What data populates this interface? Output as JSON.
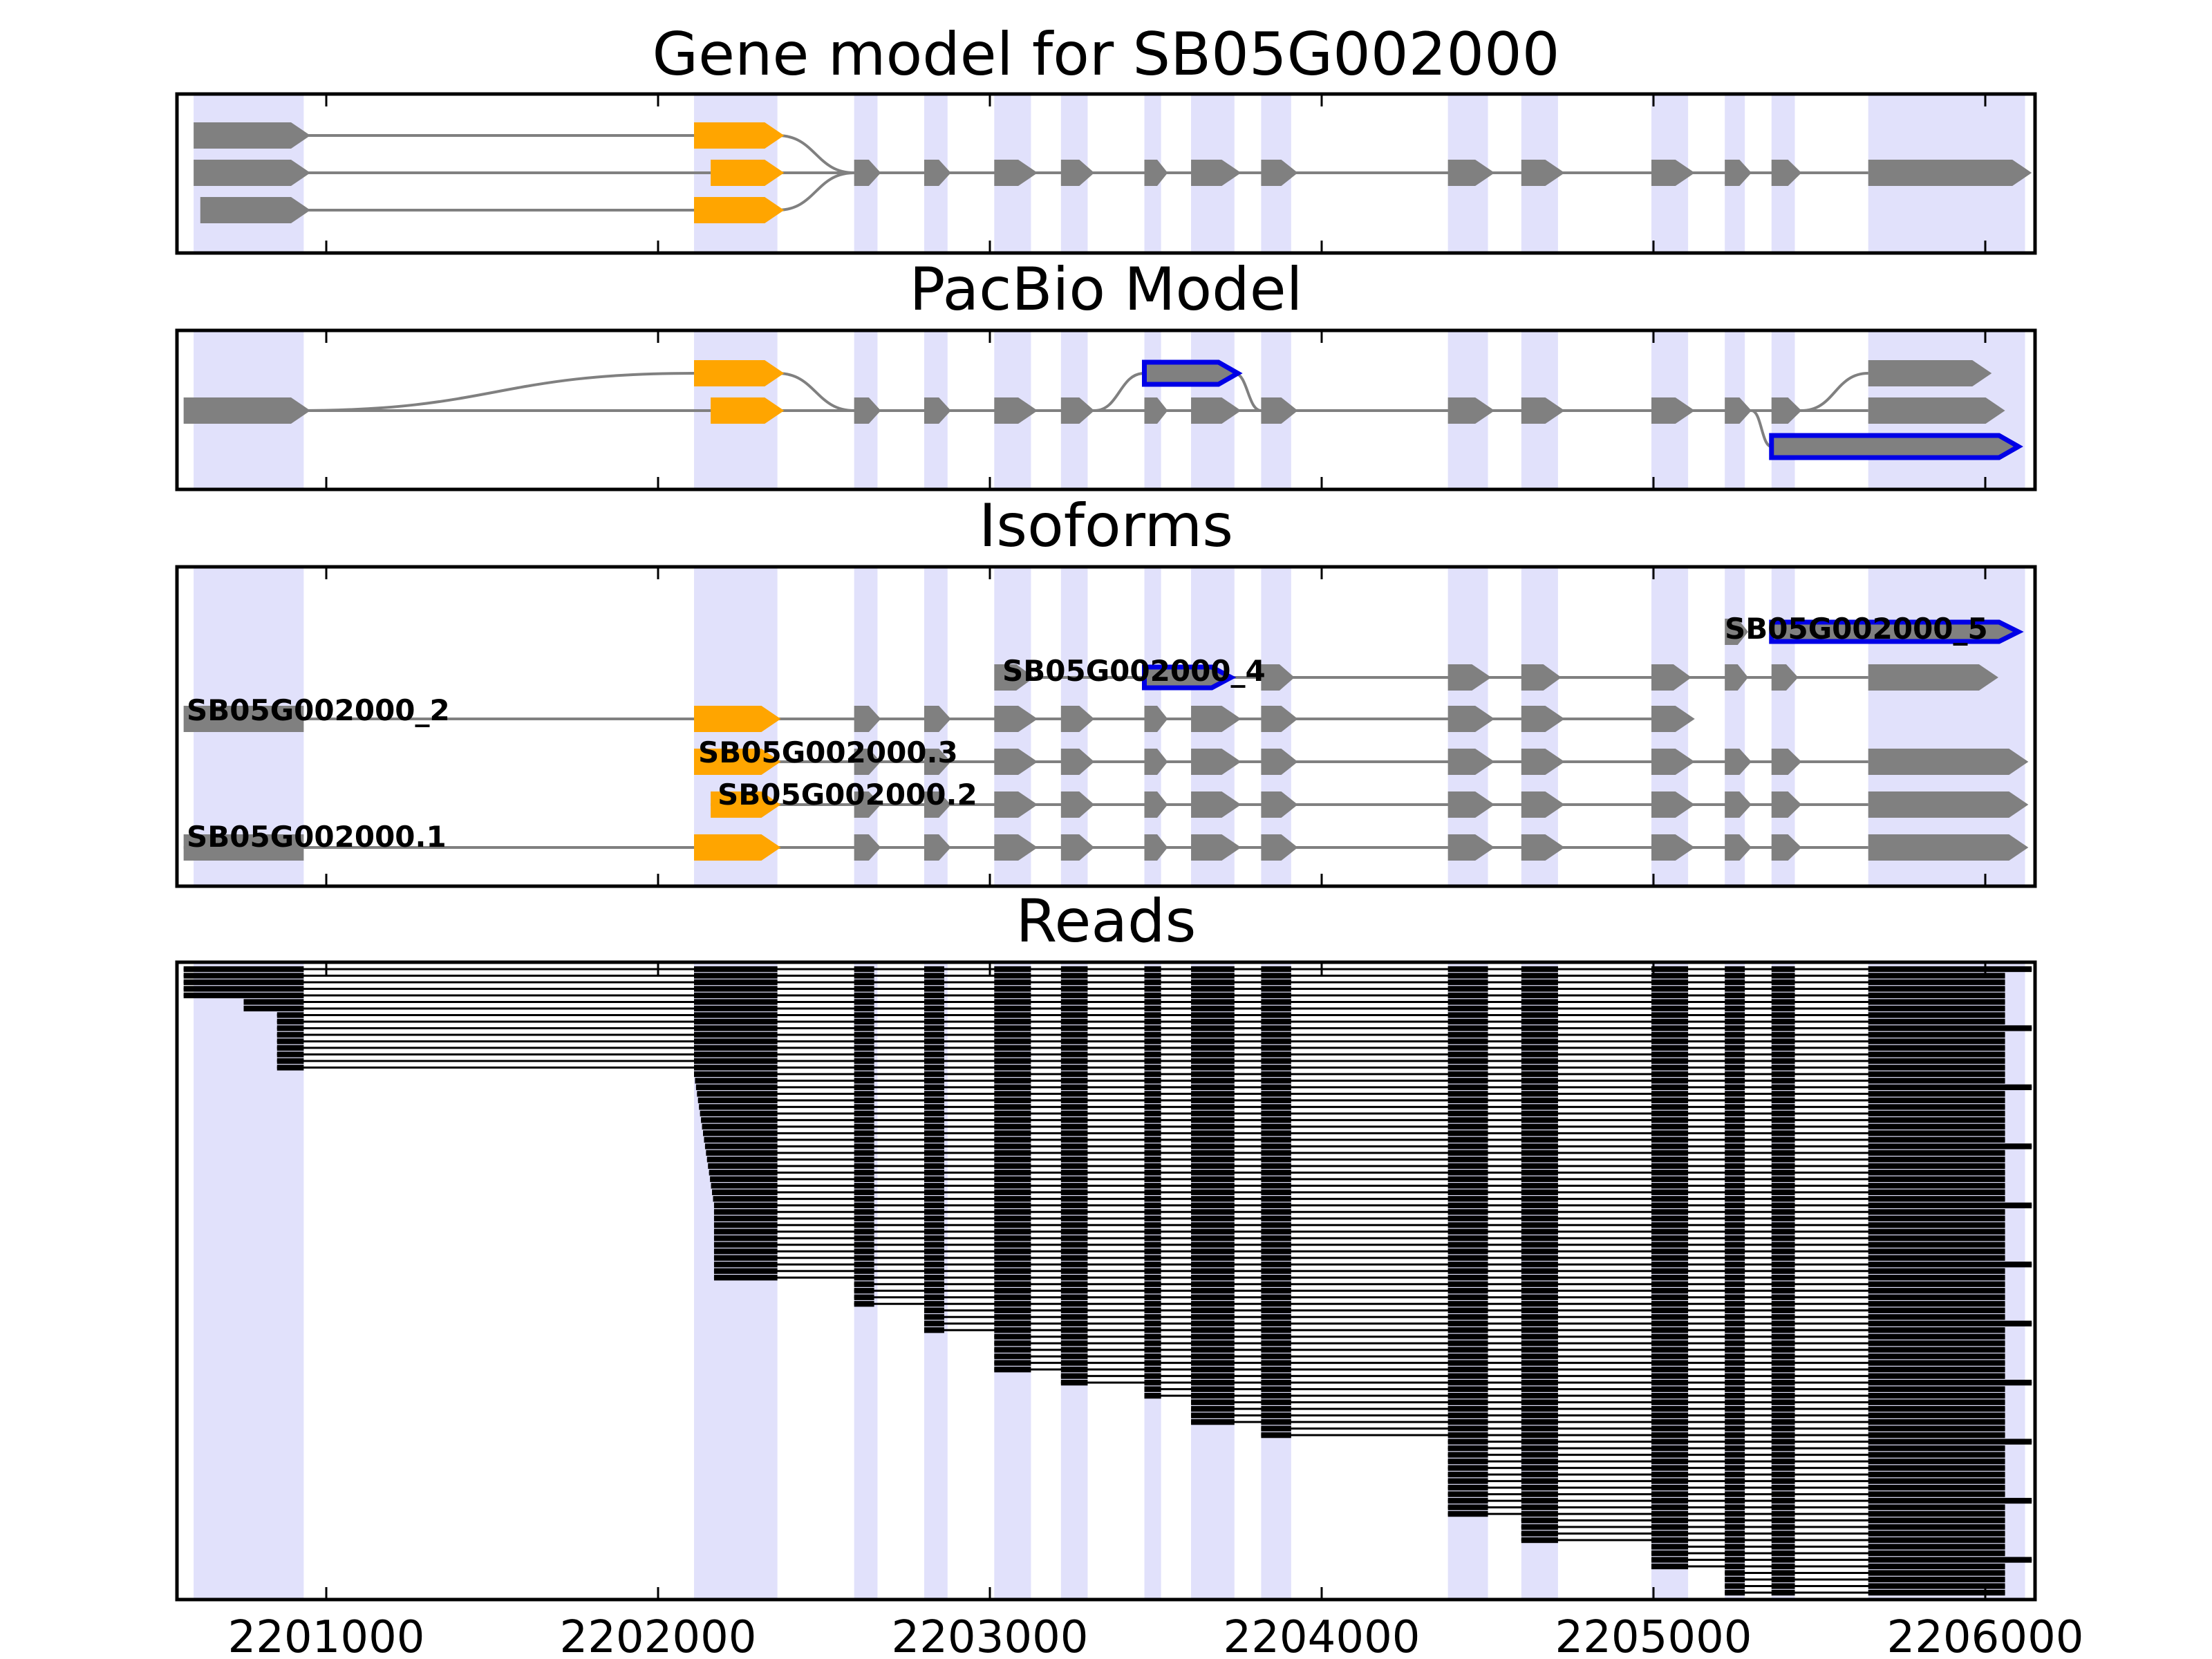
{
  "figure": {
    "panels": [
      {
        "id": "gene",
        "title": "Gene model for SB05G002000"
      },
      {
        "id": "pacbio",
        "title": "PacBio Model"
      },
      {
        "id": "iso",
        "title": "Isoforms"
      },
      {
        "id": "reads",
        "title": "Reads"
      }
    ],
    "x_ticks": [
      "2201000",
      "2202000",
      "2203000",
      "2204000",
      "2205000",
      "2206000"
    ],
    "isoform_labels": [
      "SB05G002000_5",
      "SB05G002000_4",
      "SB05G002000_2",
      "SB05G002000.3",
      "SB05G002000.2",
      "SB05G002000.1"
    ],
    "colors": {
      "highlight": "#e1e1fb",
      "exon": "#808080",
      "alt_exon": "#ffa500",
      "novel_outline": "#0000e6",
      "read": "#000000",
      "intron": "#808080"
    }
  },
  "chart_data": {
    "type": "gene-structure",
    "xlim": [
      2200580,
      2206150
    ],
    "x_ticks": [
      2201000,
      2202000,
      2203000,
      2204000,
      2205000,
      2206000
    ],
    "exon_regions": [
      [
        2200630,
        2200960
      ],
      [
        2202130,
        2202380
      ],
      [
        2202610,
        2202680
      ],
      [
        2202820,
        2202890
      ],
      [
        2203030,
        2203140
      ],
      [
        2203230,
        2203310
      ],
      [
        2203480,
        2203530
      ],
      [
        2203620,
        2203750
      ],
      [
        2203830,
        2203920
      ],
      [
        2204390,
        2204510
      ],
      [
        2204610,
        2204720
      ],
      [
        2205000,
        2205110
      ],
      [
        2205220,
        2205280
      ],
      [
        2205360,
        2205430
      ],
      [
        2205650,
        2206120
      ]
    ],
    "isoforms": [
      {
        "name": "SB05G002000_5",
        "track": 1
      },
      {
        "name": "SB05G002000_4",
        "track": 2
      },
      {
        "name": "SB05G002000_2",
        "track": 3
      },
      {
        "name": "SB05G002000.3",
        "track": 4
      },
      {
        "name": "SB05G002000.2",
        "track": 5
      },
      {
        "name": "SB05G002000.1",
        "track": 6
      }
    ],
    "reads_count": 96
  }
}
